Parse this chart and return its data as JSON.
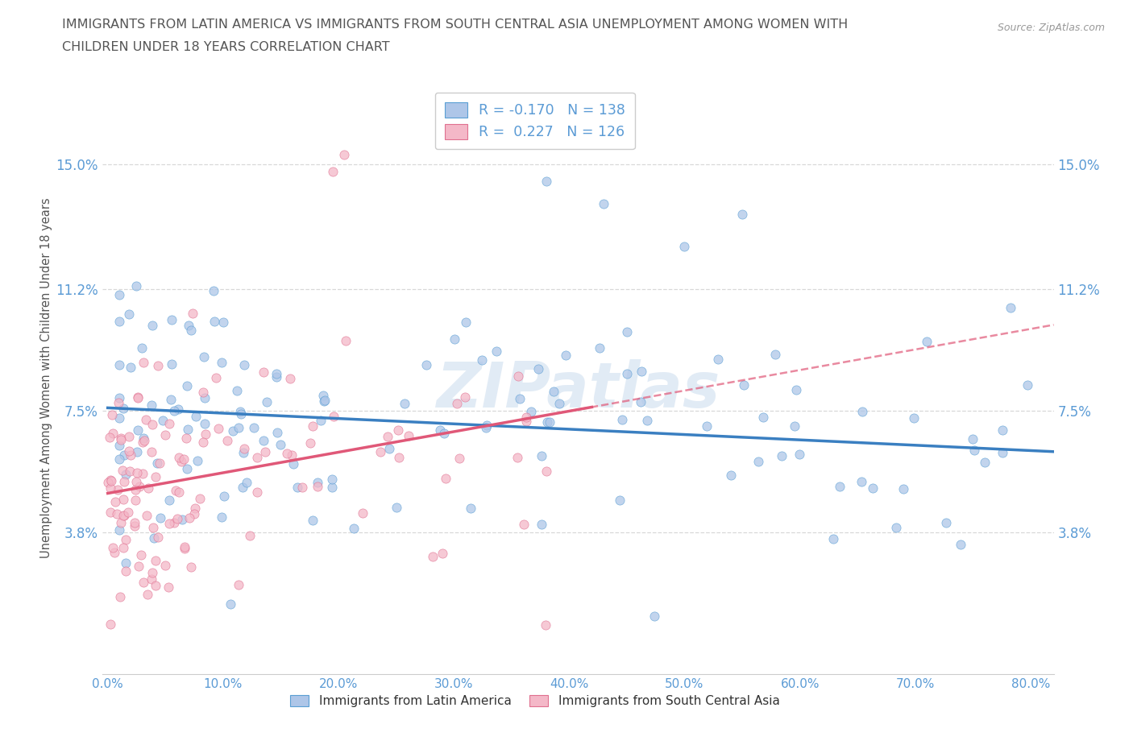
{
  "title_line1": "IMMIGRANTS FROM LATIN AMERICA VS IMMIGRANTS FROM SOUTH CENTRAL ASIA UNEMPLOYMENT AMONG WOMEN WITH",
  "title_line2": "CHILDREN UNDER 18 YEARS CORRELATION CHART",
  "source": "Source: ZipAtlas.com",
  "ylabel": "Unemployment Among Women with Children Under 18 years",
  "xlim": [
    -0.005,
    0.82
  ],
  "ylim": [
    -0.005,
    0.175
  ],
  "yticks": [
    0.038,
    0.075,
    0.112,
    0.15
  ],
  "ytick_labels": [
    "3.8%",
    "7.5%",
    "11.2%",
    "15.0%"
  ],
  "xticks": [
    0.0,
    0.1,
    0.2,
    0.3,
    0.4,
    0.5,
    0.6,
    0.7,
    0.8
  ],
  "xtick_labels": [
    "0.0%",
    "10.0%",
    "20.0%",
    "30.0%",
    "40.0%",
    "50.0%",
    "60.0%",
    "70.0%",
    "80.0%"
  ],
  "latin_america_R": -0.17,
  "latin_america_N": 138,
  "south_central_asia_R": 0.227,
  "south_central_asia_N": 126,
  "latin_america_color": "#aec6e8",
  "latin_america_edge_color": "#5a9fd4",
  "latin_america_line_color": "#3a7fc1",
  "south_central_asia_color": "#f4b8c8",
  "south_central_asia_edge_color": "#e07090",
  "south_central_asia_line_color": "#e05878",
  "watermark": "ZIPatlas",
  "background_color": "#ffffff",
  "grid_color": "#d8d8d8",
  "tick_color": "#5b9bd5",
  "title_color": "#555555"
}
